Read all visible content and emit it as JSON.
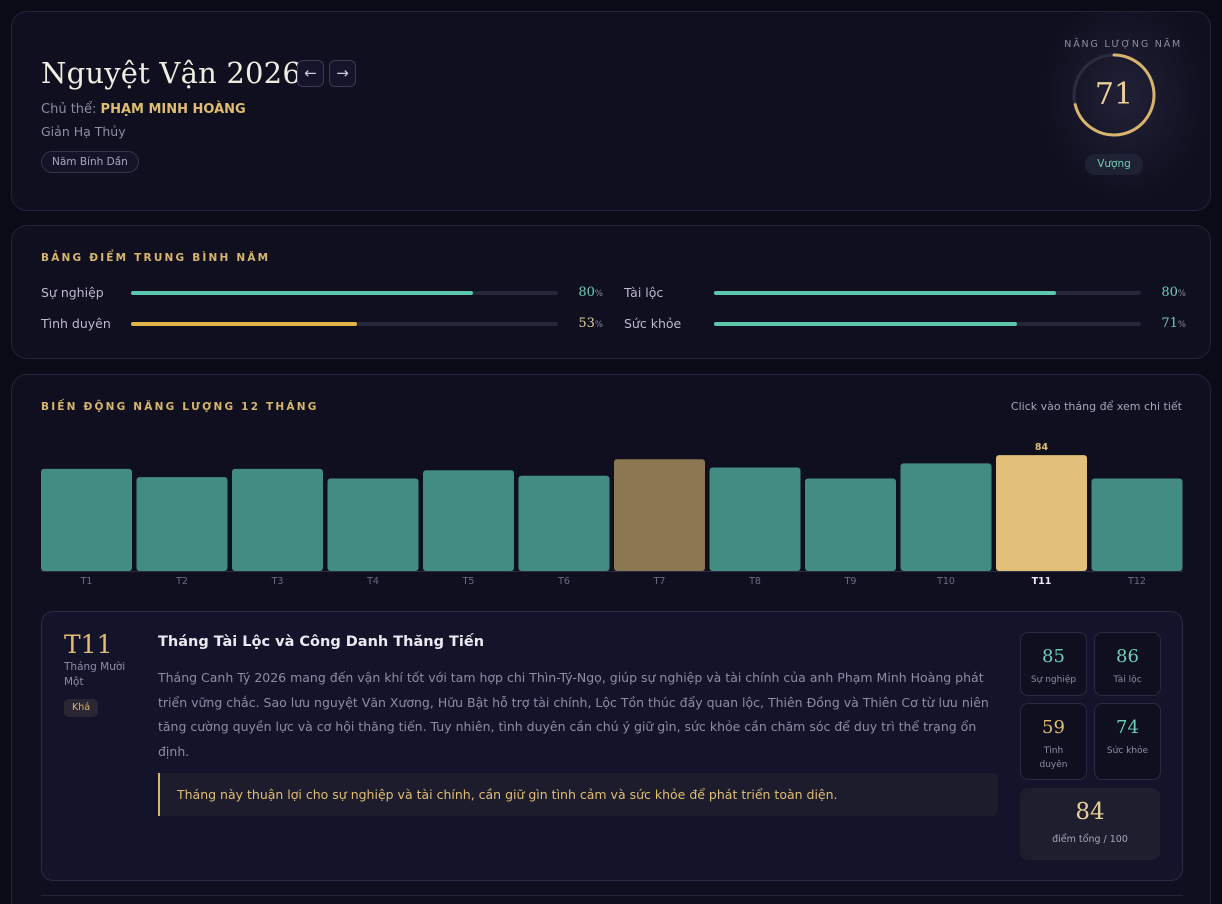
{
  "header": {
    "title": "Nguyệt Vận 2026",
    "prev_icon": "←",
    "next_icon": "→",
    "subject_label": "Chủ thể:",
    "subject_name": "PHẠM MINH HOÀNG",
    "element": "Giản Hạ Thủy",
    "year_badge": "Năm Bính Dần",
    "energy_label": "NĂNG LƯỢNG NĂM",
    "energy_value": "71",
    "energy_level": 71,
    "status": "Vượng"
  },
  "averages": {
    "title": "BẢNG ĐIỂM TRUNG BÌNH NĂM",
    "unit": "%",
    "items": [
      {
        "label": "Sự nghiệp",
        "value": 80,
        "value_text": "80",
        "color": "#5cc7ad"
      },
      {
        "label": "Tài lộc",
        "value": 80,
        "value_text": "80",
        "color": "#5cc7ad"
      },
      {
        "label": "Tình duyên",
        "value": 53,
        "value_text": "53",
        "color": "#e0b648"
      },
      {
        "label": "Sức khỏe",
        "value": 71,
        "value_text": "71",
        "color": "#5cc7ad"
      }
    ]
  },
  "chart": {
    "title": "BIẾN ĐỘNG NĂNG LƯỢNG 12 THÁNG",
    "hint": "Click vào tháng để xem chi tiết"
  },
  "chart_data": {
    "type": "bar",
    "categories": [
      "T1",
      "T2",
      "T3",
      "T4",
      "T5",
      "T6",
      "T7",
      "T8",
      "T9",
      "T10",
      "T11",
      "T12"
    ],
    "values": [
      74,
      68,
      74,
      67,
      73,
      69,
      81,
      75,
      67,
      78,
      84,
      67
    ],
    "selected_index": 10,
    "data_labels": {
      "T11": "84"
    },
    "colors": {
      "normal": "#428c81",
      "highlight": "#8c7753",
      "selected": "#e2c07a"
    },
    "highlight_index": 6
  },
  "detail": {
    "code": "T11",
    "month_name": "Tháng Mười Một",
    "rating": "Khá",
    "title": "Tháng Tài Lộc và Công Danh Thăng Tiến",
    "description": "Tháng Canh Tý 2026 mang đến vận khí tốt với tam hợp chi Thìn-Tý-Ngọ, giúp sự nghiệp và tài chính của anh Phạm Minh Hoàng phát triển vững chắc. Sao lưu nguyệt Văn Xương, Hữu Bật hỗ trợ tài chính, Lộc Tồn thúc đẩy quan lộc, Thiên Đồng và Thiên Cơ từ lưu niên tăng cường quyền lực và cơ hội thăng tiến. Tuy nhiên, tình duyên cần chú ý giữ gìn, sức khỏe cần chăm sóc để duy trì thể trạng ổn định.",
    "note": "Tháng này thuận lợi cho sự nghiệp và tài chính, cần giữ gìn tình cảm và sức khỏe để phát triển toàn diện.",
    "scores": [
      {
        "value": "85",
        "label": "Sự nghiệp",
        "color": "#6fcfb5"
      },
      {
        "value": "86",
        "label": "Tài lộc",
        "color": "#6fcfb5"
      },
      {
        "value": "59",
        "label": "Tình duyên",
        "color": "#e0bd72"
      },
      {
        "value": "74",
        "label": "Sức khỏe",
        "color": "#6fcfb5"
      }
    ],
    "total_value": "84",
    "total_label": "điểm tổng / 100"
  }
}
